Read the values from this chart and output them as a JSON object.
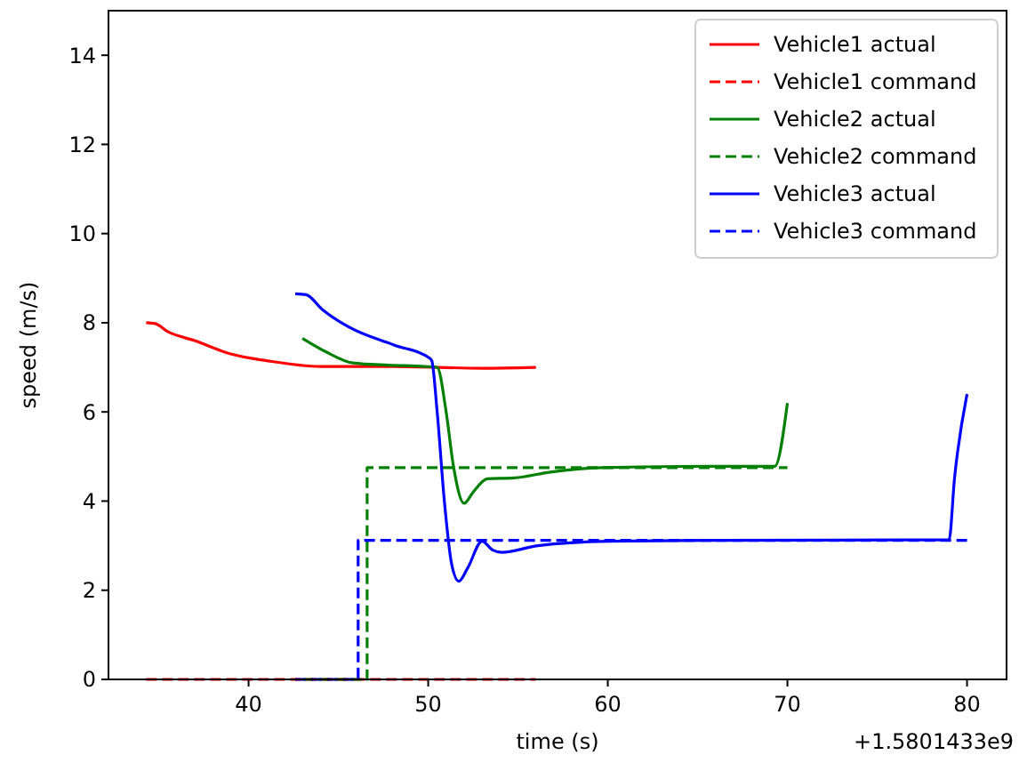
{
  "chart_data": {
    "type": "line",
    "xlabel": "time (s)",
    "ylabel": "speed (m/s)",
    "xlim": [
      32.2,
      82.2
    ],
    "ylim": [
      0,
      15
    ],
    "xticks": [
      40,
      50,
      60,
      70,
      80
    ],
    "yticks": [
      0,
      2,
      4,
      6,
      8,
      10,
      12,
      14
    ],
    "grid": false,
    "legend": "top right",
    "annotations": [
      "+1.5801433e9"
    ],
    "series": [
      {
        "name": "Vehicle1 actual",
        "color": "#ff0000",
        "line_style": "solid",
        "x": [
          34.3,
          34.8,
          35.5,
          37,
          39,
          41,
          44,
          48,
          53,
          56
        ],
        "values": [
          8.0,
          7.98,
          7.8,
          7.6,
          7.3,
          7.15,
          7.02,
          7.02,
          6.98,
          7.0
        ]
      },
      {
        "name": "Vehicle1 command",
        "type": "step",
        "color": "#ff0000",
        "line_style": "dashed",
        "x": [
          34.3,
          56
        ],
        "values": [
          0,
          0
        ]
      },
      {
        "name": "Vehicle2 actual",
        "color": "#008000",
        "line_style": "solid",
        "x": [
          43,
          44.3,
          45.8,
          47.8,
          49.8,
          50.5,
          51,
          51.4,
          52,
          52.5,
          53.3,
          54.8,
          56.8,
          59.7,
          65.7,
          69.3,
          70
        ],
        "values": [
          7.65,
          7.35,
          7.1,
          7.05,
          7.02,
          7.0,
          6.0,
          4.8,
          3.95,
          4.2,
          4.5,
          4.52,
          4.65,
          4.75,
          4.78,
          4.78,
          6.2
        ]
      },
      {
        "name": "Vehicle2 command",
        "type": "step",
        "color": "#008000",
        "line_style": "dashed",
        "x": [
          43,
          46.6,
          70
        ],
        "values": [
          0,
          4.75,
          4.75
        ]
      },
      {
        "name": "Vehicle3 actual",
        "color": "#0000ff",
        "line_style": "solid",
        "x": [
          42.6,
          43.2,
          44.1,
          45.6,
          48.1,
          50.1,
          50.2,
          50.5,
          50.9,
          51.3,
          51.7,
          52.2,
          53,
          53.6,
          54.1,
          56.1,
          60.1,
          66,
          79,
          79.3,
          80
        ],
        "values": [
          8.65,
          8.63,
          8.3,
          7.9,
          7.5,
          7.2,
          7.15,
          6.0,
          4.0,
          2.6,
          2.2,
          2.5,
          3.1,
          2.9,
          2.85,
          3.0,
          3.1,
          3.12,
          3.13,
          4.5,
          6.4
        ]
      },
      {
        "name": "Vehicle3 command",
        "type": "step",
        "color": "#0000ff",
        "line_style": "dashed",
        "x": [
          42.6,
          46.1,
          80
        ],
        "values": [
          0,
          3.12,
          3.12
        ]
      }
    ]
  }
}
